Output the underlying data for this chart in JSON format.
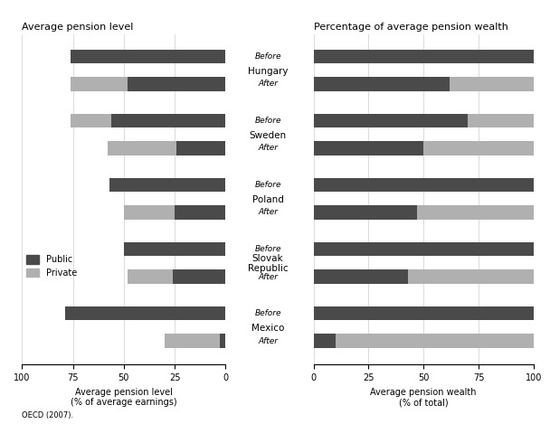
{
  "title_left": "Average pension level",
  "title_right": "Percentage of average pension wealth",
  "xlabel_left": "Average pension level\n(% of average earnings)",
  "xlabel_right": "Average pension wealth\n(% of total)",
  "countries": [
    "Hungary",
    "Sweden",
    "Poland",
    "Slovak\nRepublic",
    "Mexico"
  ],
  "left_public_before": [
    76,
    56,
    57,
    50,
    79
  ],
  "left_private_before": [
    0,
    20,
    0,
    0,
    0
  ],
  "left_public_after": [
    48,
    24,
    25,
    26,
    3
  ],
  "left_private_after": [
    28,
    34,
    25,
    22,
    27
  ],
  "right_public_before": [
    100,
    70,
    100,
    100,
    100
  ],
  "right_private_before": [
    0,
    30,
    0,
    0,
    0
  ],
  "right_public_after": [
    62,
    50,
    47,
    43,
    10
  ],
  "right_private_after": [
    38,
    50,
    53,
    57,
    90
  ],
  "color_public": "#4a4a4a",
  "color_private": "#b0b0b0",
  "color_bg": "#ffffff"
}
